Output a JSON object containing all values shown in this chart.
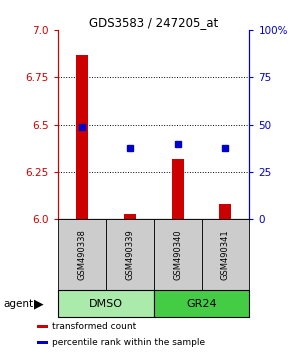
{
  "title": "GDS3583 / 247205_at",
  "samples": [
    "GSM490338",
    "GSM490339",
    "GSM490340",
    "GSM490341"
  ],
  "bar_values": [
    6.87,
    6.03,
    6.32,
    6.08
  ],
  "bar_base": 6.0,
  "percentile_values": [
    49,
    38,
    40,
    38
  ],
  "ylim_left": [
    6.0,
    7.0
  ],
  "ylim_right": [
    0,
    100
  ],
  "yticks_left": [
    6.0,
    6.25,
    6.5,
    6.75,
    7.0
  ],
  "yticks_right": [
    0,
    25,
    50,
    75,
    100
  ],
  "ytick_labels_right": [
    "0",
    "25",
    "50",
    "75",
    "100%"
  ],
  "bar_color": "#cc0000",
  "dot_color": "#0000cc",
  "groups": [
    {
      "label": "DMSO",
      "indices": [
        0,
        1
      ],
      "color": "#aaeaaa"
    },
    {
      "label": "GR24",
      "indices": [
        2,
        3
      ],
      "color": "#44cc44"
    }
  ],
  "agent_label": "agent",
  "legend_items": [
    {
      "color": "#cc0000",
      "label": "transformed count"
    },
    {
      "color": "#0000cc",
      "label": "percentile rank within the sample"
    }
  ],
  "bar_width": 0.25,
  "sample_box_color": "#cccccc",
  "left_axis_color": "#cc0000",
  "right_axis_color": "#0000cc",
  "grid_yticks": [
    6.25,
    6.5,
    6.75
  ]
}
